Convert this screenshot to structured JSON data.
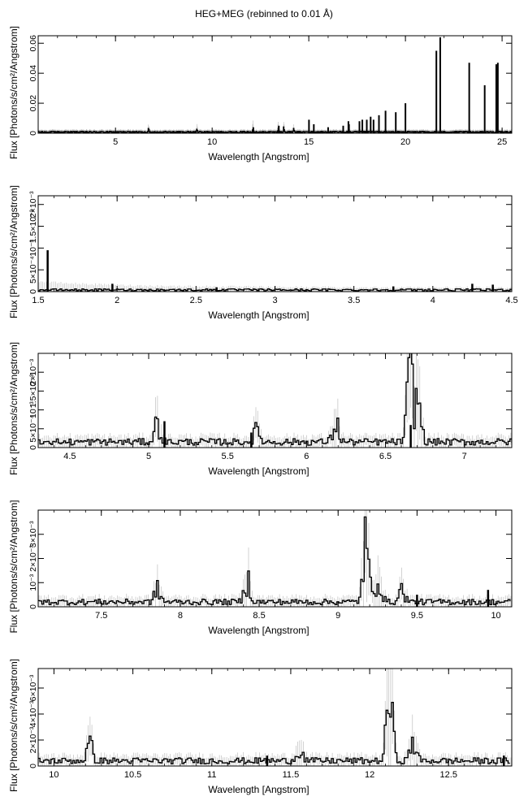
{
  "title": "HEG+MEG (rebinned to 0.01 Å)",
  "chart_data": [
    {
      "type": "line",
      "title": "HEG+MEG (rebinned to 0.01 Å)",
      "xlabel": "Wavelength [Angstrom]",
      "ylabel": "Flux [Photons/s/cm²/Angstrom]",
      "xlim": [
        1.0,
        25.5
      ],
      "ylim": [
        0,
        0.065
      ],
      "xticks": [
        5,
        10,
        15,
        20,
        25
      ],
      "xtick_labels": [
        "5",
        "10",
        "15",
        "20",
        "25"
      ],
      "yticks": [
        0,
        0.02,
        0.04,
        0.06
      ],
      "ytick_labels": [
        "0",
        "0.02",
        "0.04",
        "0.06"
      ],
      "grid": false,
      "series": [
        {
          "color": "#000000",
          "baseline": 0.0008,
          "bumps": [
            [
              6.7,
              0.0015
            ],
            [
              9.2,
              0.0025
            ],
            [
              12.1,
              0.0055
            ],
            [
              13.4,
              0.0042
            ],
            [
              13.7,
              0.003
            ],
            [
              14.2,
              0.0015
            ]
          ],
          "lines": [
            [
              12.13,
              0.004
            ],
            [
              13.45,
              0.005
            ],
            [
              15.01,
              0.009
            ],
            [
              15.26,
              0.006
            ],
            [
              16.0,
              0.004
            ],
            [
              16.78,
              0.005
            ],
            [
              17.05,
              0.008
            ],
            [
              17.08,
              0.006
            ],
            [
              17.62,
              0.008
            ],
            [
              17.77,
              0.009
            ],
            [
              18.0,
              0.009
            ],
            [
              18.2,
              0.011
            ],
            [
              18.35,
              0.009
            ],
            [
              18.63,
              0.012
            ],
            [
              18.97,
              0.015
            ],
            [
              19.5,
              0.014
            ],
            [
              20.0,
              0.02
            ],
            [
              21.6,
              0.055
            ],
            [
              21.8,
              0.064
            ],
            [
              23.3,
              0.047
            ],
            [
              24.1,
              0.032
            ],
            [
              24.7,
              0.046
            ],
            [
              24.78,
              0.047
            ]
          ]
        }
      ]
    },
    {
      "type": "line",
      "xlabel": "Wavelength [Angstrom]",
      "ylabel": "Flux [Photons/s/cm²/Angstrom]",
      "xlim": [
        1.5,
        4.5
      ],
      "ylim": [
        0,
        0.0022
      ],
      "xticks": [
        1.5,
        2,
        2.5,
        3,
        3.5,
        4,
        4.5
      ],
      "xtick_labels": [
        "1.5",
        "2",
        "2.5",
        "3",
        "3.5",
        "4",
        "4.5"
      ],
      "yticks": [
        0,
        0.0005,
        0.001,
        0.0015,
        0.002
      ],
      "ytick_labels": [
        "0",
        "5×10⁻⁴",
        "10⁻³",
        "1.5×10⁻³",
        "2×10⁻³"
      ],
      "grid": false,
      "series": [
        {
          "color": "#000000",
          "baseline": 4e-05,
          "bumps": [],
          "lines": [
            [
              1.56,
              0.00095
            ],
            [
              1.97,
              0.00018
            ],
            [
              2.63,
              0.0001
            ],
            [
              3.75,
              0.00012
            ],
            [
              4.25,
              0.00018
            ],
            [
              4.38,
              0.00016
            ]
          ]
        }
      ]
    },
    {
      "type": "line",
      "xlabel": "Wavelength [Angstrom]",
      "ylabel": "Flux [Photons/s/cm²/Angstrom]",
      "xlim": [
        4.3,
        7.3
      ],
      "ylim": [
        0,
        0.0025
      ],
      "xticks": [
        4.5,
        5,
        5.5,
        6,
        6.5,
        7
      ],
      "xtick_labels": [
        "4.5",
        "5",
        "5.5",
        "6",
        "6.5",
        "7"
      ],
      "yticks": [
        0,
        0.0005,
        0.001,
        0.0015,
        0.002
      ],
      "ytick_labels": [
        "0",
        "5×10⁻⁴",
        "10⁻³",
        "1.5×10⁻³",
        "2×10⁻³"
      ],
      "grid": false,
      "series": [
        {
          "color": "#000000",
          "baseline": 0.00015,
          "bumps": [
            [
              5.05,
              0.0005
            ],
            [
              5.68,
              0.0003
            ],
            [
              6.18,
              0.0005
            ],
            [
              6.65,
              0.0018
            ],
            [
              6.7,
              0.0011
            ]
          ],
          "lines": [
            [
              5.1,
              0.0007
            ],
            [
              5.65,
              0.0004
            ],
            [
              6.66,
              0.0006
            ]
          ]
        }
      ]
    },
    {
      "type": "line",
      "xlabel": "Wavelength [Angstrom]",
      "ylabel": "Flux [Photons/s/cm²/Angstrom]",
      "xlim": [
        7.1,
        10.1
      ],
      "ylim": [
        0,
        0.004
      ],
      "xticks": [
        7.5,
        8,
        8.5,
        9,
        9.5,
        10
      ],
      "xtick_labels": [
        "7.5",
        "8",
        "8.5",
        "9",
        "9.5",
        "10"
      ],
      "yticks": [
        0,
        0.001,
        0.002,
        0.003
      ],
      "ytick_labels": [
        "0",
        "10⁻³",
        "2×10⁻³",
        "3×10⁻³"
      ],
      "grid": false,
      "series": [
        {
          "color": "#000000",
          "baseline": 0.0002,
          "bumps": [
            [
              7.85,
              0.0005
            ],
            [
              8.42,
              0.0009
            ],
            [
              9.17,
              0.0024
            ],
            [
              9.25,
              0.0011
            ],
            [
              9.4,
              0.0005
            ]
          ],
          "lines": [
            [
              9.95,
              0.0007
            ],
            [
              9.5,
              0.0005
            ]
          ]
        }
      ]
    },
    {
      "type": "line",
      "xlabel": "Wavelength [Angstrom]",
      "ylabel": "Flux [Photons/s/cm²/Angstrom]",
      "xlim": [
        9.9,
        12.9
      ],
      "ylim": [
        0,
        0.0075
      ],
      "xticks": [
        10,
        10.5,
        11,
        11.5,
        12,
        12.5
      ],
      "xtick_labels": [
        "10",
        "10.5",
        "11",
        "11.5",
        "12",
        "12.5"
      ],
      "yticks": [
        0,
        0.002,
        0.004,
        0.006
      ],
      "ytick_labels": [
        "0",
        "2×10⁻³",
        "4×10⁻³",
        "6×10⁻³"
      ],
      "grid": false,
      "series": [
        {
          "color": "#000000",
          "baseline": 0.0004,
          "bumps": [
            [
              10.22,
              0.0012
            ],
            [
              11.55,
              0.001
            ],
            [
              12.12,
              0.0052
            ],
            [
              12.27,
              0.0015
            ]
          ],
          "lines": [
            [
              11.35,
              0.0008
            ],
            [
              12.85,
              0.0008
            ]
          ]
        }
      ]
    }
  ]
}
